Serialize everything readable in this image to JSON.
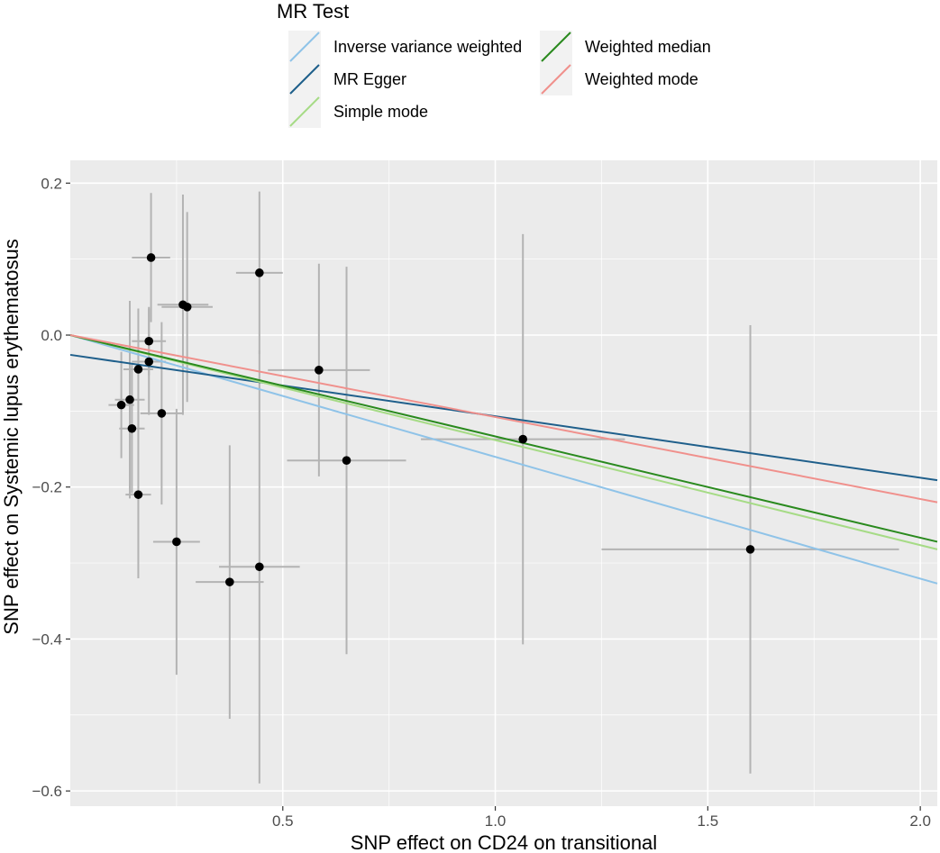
{
  "chart_data": {
    "type": "scatter",
    "title": "",
    "xlabel": "SNP effect on CD24 on transitional",
    "ylabel": "SNP effect on Systemic lupus erythematosus",
    "xlim": [
      0.0,
      2.04
    ],
    "ylim": [
      -0.62,
      0.23
    ],
    "x_ticks": [
      0.5,
      1.0,
      1.5,
      2.0
    ],
    "x_tick_labels": [
      "0.5",
      "1.0",
      "1.5",
      "2.0"
    ],
    "y_ticks": [
      0.2,
      0.0,
      -0.2,
      -0.4,
      -0.6
    ],
    "y_tick_labels": [
      "0.2",
      "0.0",
      "−0.2",
      "−0.4",
      "−0.6"
    ],
    "grid": true,
    "legend": {
      "title": "MR Test",
      "placement": "top",
      "entries": [
        {
          "label": "Inverse variance weighted",
          "color": "#8fc3e8"
        },
        {
          "label": "MR Egger",
          "color": "#1f5f8b"
        },
        {
          "label": "Simple mode",
          "color": "#a6db86"
        },
        {
          "label": "Weighted median",
          "color": "#2a8a1e"
        },
        {
          "label": "Weighted mode",
          "color": "#f0908c"
        }
      ]
    },
    "points": [
      {
        "x": 0.19,
        "y": 0.102,
        "xerr": 0.045,
        "yerr": 0.085
      },
      {
        "x": 0.265,
        "y": 0.04,
        "xerr": 0.06,
        "yerr": 0.145
      },
      {
        "x": 0.275,
        "y": 0.037,
        "xerr": 0.06,
        "yerr": 0.125
      },
      {
        "x": 0.445,
        "y": 0.082,
        "xerr": 0.055,
        "yerr": 0.107
      },
      {
        "x": 0.185,
        "y": -0.008,
        "xerr": 0.04,
        "yerr": 0.045
      },
      {
        "x": 0.185,
        "y": -0.035,
        "xerr": 0.04,
        "yerr": 0.07
      },
      {
        "x": 0.16,
        "y": -0.045,
        "xerr": 0.035,
        "yerr": 0.08
      },
      {
        "x": 0.14,
        "y": -0.085,
        "xerr": 0.035,
        "yerr": 0.13
      },
      {
        "x": 0.12,
        "y": -0.092,
        "xerr": 0.03,
        "yerr": 0.07
      },
      {
        "x": 0.145,
        "y": -0.123,
        "xerr": 0.03,
        "yerr": 0.085
      },
      {
        "x": 0.215,
        "y": -0.103,
        "xerr": 0.05,
        "yerr": 0.12
      },
      {
        "x": 0.16,
        "y": -0.21,
        "xerr": 0.03,
        "yerr": 0.11
      },
      {
        "x": 0.25,
        "y": -0.272,
        "xerr": 0.055,
        "yerr": 0.175
      },
      {
        "x": 0.375,
        "y": -0.325,
        "xerr": 0.08,
        "yerr": 0.18
      },
      {
        "x": 0.445,
        "y": -0.305,
        "xerr": 0.095,
        "yerr": 0.285
      },
      {
        "x": 0.585,
        "y": -0.046,
        "xerr": 0.12,
        "yerr": 0.14
      },
      {
        "x": 0.65,
        "y": -0.165,
        "xerr": 0.14,
        "yerr": 0.255
      },
      {
        "x": 1.065,
        "y": -0.137,
        "xerr": 0.24,
        "yerr": 0.27
      },
      {
        "x": 1.6,
        "y": -0.282,
        "xerr": 0.35,
        "yerr": 0.295
      }
    ],
    "lines": [
      {
        "name": "Inverse variance weighted",
        "color": "#8fc3e8",
        "x": [
          0.0,
          2.04
        ],
        "y": [
          0.0,
          -0.327
        ]
      },
      {
        "name": "MR Egger",
        "color": "#1f5f8b",
        "x": [
          0.0,
          2.04
        ],
        "y": [
          -0.026,
          -0.191
        ]
      },
      {
        "name": "Simple mode",
        "color": "#a6db86",
        "x": [
          0.0,
          2.04
        ],
        "y": [
          0.0,
          -0.282
        ]
      },
      {
        "name": "Weighted median",
        "color": "#2a8a1e",
        "x": [
          0.0,
          2.04
        ],
        "y": [
          0.0,
          -0.272
        ]
      },
      {
        "name": "Weighted mode",
        "color": "#f0908c",
        "x": [
          0.0,
          2.04
        ],
        "y": [
          0.0,
          -0.22
        ]
      }
    ]
  }
}
